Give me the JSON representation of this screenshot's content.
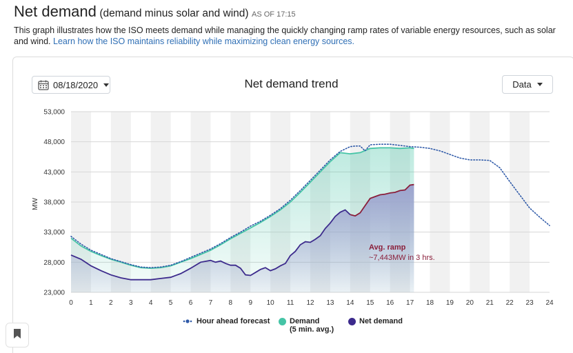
{
  "header": {
    "title": "Net demand",
    "subtitle": "(demand minus solar and wind)",
    "as_of": "AS OF 17:15",
    "description": "This graph illustrates how the ISO meets demand while managing the quickly changing ramp rates of variable energy resources, such as solar and wind.",
    "link_text": "Learn how the ISO maintains reliability while maximizing clean energy sources."
  },
  "controls": {
    "date_label": "08/18/2020",
    "data_label": "Data"
  },
  "colors": {
    "forecast": "#2f5aa8",
    "demand": "#45c4a6",
    "demand_fill": "#dcf3ec",
    "net_line": "#3c2a8c",
    "net_line_ramp": "#8a1e3a",
    "net_fill": "#9aa0cd",
    "band": "#f1f1f1",
    "annotation": "#8a1e3a"
  },
  "chart_data": {
    "type": "area",
    "title": "Net demand trend",
    "ylabel": "MW",
    "xlabel": "",
    "x_ticks": [
      "0",
      "1",
      "2",
      "3",
      "4",
      "5",
      "6",
      "7",
      "8",
      "9",
      "10",
      "11",
      "12",
      "13",
      "14",
      "15",
      "16",
      "17",
      "18",
      "19",
      "20",
      "21",
      "22",
      "23",
      "24"
    ],
    "y_ticks": [
      "23,000",
      "28,000",
      "33,000",
      "38,000",
      "43,000",
      "48,000",
      "53,000"
    ],
    "xlim": [
      0,
      24
    ],
    "ylim": [
      23000,
      53000
    ],
    "grid": true,
    "legend_position": "bottom",
    "legend": {
      "forecast": "Hour ahead forecast",
      "demand": "Demand",
      "demand_note": "(5 min. avg.)",
      "net": "Net demand"
    },
    "annotation": {
      "line1": "Avg. ramp",
      "line2": "~7,443MW in 3 hrs."
    },
    "series": [
      {
        "name": "Hour ahead forecast",
        "style": "dotted",
        "x": [
          0,
          0.5,
          1,
          1.5,
          2,
          2.5,
          3,
          3.5,
          4,
          4.5,
          5,
          5.5,
          6,
          6.5,
          7,
          7.5,
          8,
          8.5,
          9,
          9.5,
          10,
          10.5,
          11,
          11.5,
          12,
          12.5,
          13,
          13.5,
          14,
          14.25,
          14.5,
          14.75,
          15,
          15.5,
          16,
          16.5,
          17,
          17.5,
          18,
          18.5,
          19,
          19.5,
          20,
          20.5,
          21,
          21.5,
          22,
          22.5,
          23,
          23.5,
          24
        ],
        "y": [
          32300,
          31000,
          30000,
          29300,
          28600,
          28100,
          27600,
          27200,
          27100,
          27200,
          27500,
          28100,
          28800,
          29500,
          30200,
          31100,
          32100,
          33000,
          34000,
          34800,
          35800,
          36900,
          38300,
          39900,
          41600,
          43300,
          45000,
          46400,
          47200,
          47300,
          47300,
          46500,
          47500,
          47600,
          47600,
          47400,
          47200,
          47100,
          46900,
          46500,
          45900,
          45300,
          45000,
          45000,
          44900,
          43700,
          41400,
          39200,
          37000,
          35500,
          34100
        ]
      },
      {
        "name": "Demand",
        "note": "(5 min. avg.)",
        "x": [
          0,
          0.5,
          1,
          1.5,
          2,
          2.5,
          3,
          3.5,
          4,
          4.5,
          5,
          5.5,
          6,
          6.5,
          7,
          7.5,
          8,
          8.5,
          9,
          9.5,
          10,
          10.5,
          11,
          11.5,
          12,
          12.5,
          13,
          13.5,
          14,
          14.5,
          15,
          15.5,
          16,
          16.5,
          17,
          17.2
        ],
        "y": [
          32000,
          30700,
          29800,
          29100,
          28500,
          28000,
          27500,
          27100,
          27000,
          27100,
          27400,
          28000,
          28600,
          29300,
          30000,
          30900,
          31900,
          32800,
          33700,
          34600,
          35600,
          36700,
          38000,
          39600,
          41300,
          43000,
          44700,
          46200,
          46000,
          46200,
          46900,
          47000,
          47000,
          46900,
          47000,
          46900
        ]
      },
      {
        "name": "Net demand",
        "x": [
          0,
          0.5,
          1,
          1.5,
          2,
          2.5,
          3,
          3.5,
          4,
          4.5,
          5,
          5.5,
          6,
          6.5,
          7,
          7.25,
          7.5,
          7.75,
          8,
          8.25,
          8.5,
          8.75,
          9,
          9.25,
          9.5,
          9.75,
          10,
          10.25,
          10.5,
          10.75,
          11,
          11.25,
          11.5,
          11.75,
          12,
          12.25,
          12.5,
          12.75,
          13,
          13.25,
          13.5,
          13.75,
          14,
          14.25,
          14.5,
          14.75,
          15,
          15.25,
          15.5,
          15.75,
          16,
          16.25,
          16.5,
          16.75,
          17,
          17.2
        ],
        "y": [
          29200,
          28500,
          27400,
          26600,
          25900,
          25400,
          25100,
          25100,
          25100,
          25300,
          25500,
          26100,
          27000,
          28000,
          28300,
          28000,
          28200,
          27800,
          27500,
          27500,
          27000,
          25900,
          25800,
          26300,
          26800,
          27100,
          26600,
          26900,
          27400,
          27800,
          29100,
          29800,
          30900,
          31400,
          31300,
          31800,
          32400,
          33600,
          34500,
          35600,
          36300,
          36700,
          35900,
          35700,
          36200,
          37400,
          38600,
          38900,
          39200,
          39300,
          39500,
          39600,
          39900,
          40000,
          40800,
          40900
        ]
      }
    ]
  }
}
